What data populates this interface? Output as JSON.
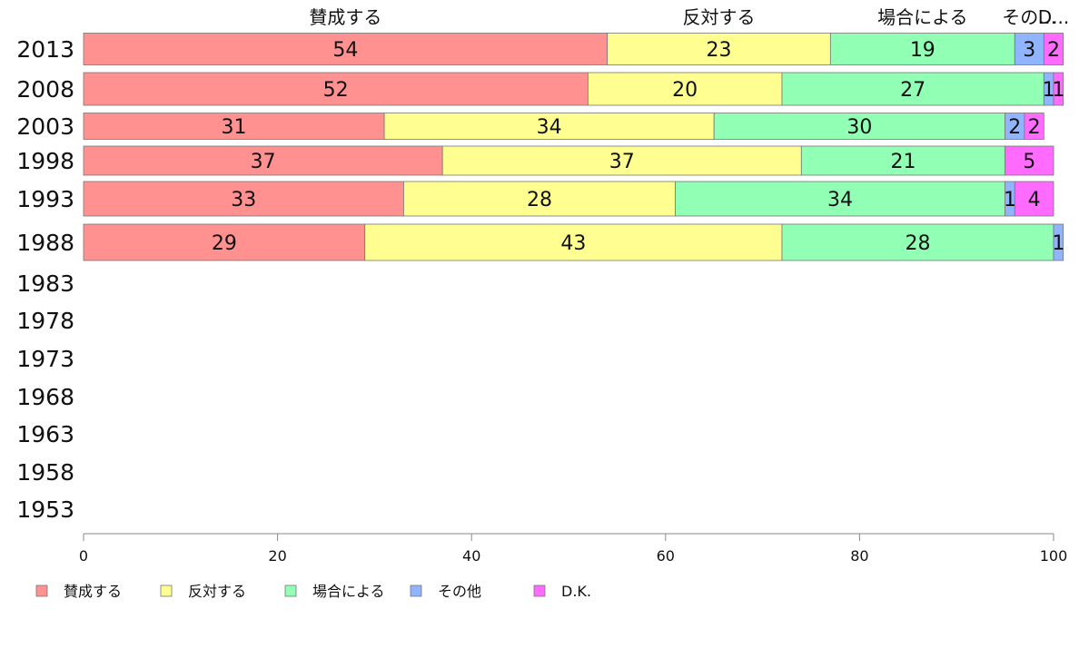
{
  "chart_data": {
    "type": "bar",
    "orientation": "horizontal",
    "stacked": true,
    "title": "",
    "xlabel": "",
    "ylabel": "",
    "xlim": [
      0,
      100
    ],
    "x_ticks": [
      "0",
      "20",
      "40",
      "60",
      "80",
      "100"
    ],
    "categories": [
      "2013",
      "2008",
      "2003",
      "1998",
      "1993",
      "1988",
      "1983",
      "1978",
      "1973",
      "1968",
      "1963",
      "1958",
      "1953"
    ],
    "top_labels": [
      "賛成する",
      "反対する",
      "場合による",
      "その…",
      "D..."
    ],
    "legend_position": "bottom-left",
    "grid": false,
    "series": [
      {
        "name": "賛成する",
        "color": "#ff9191",
        "values": [
          54,
          52,
          31,
          37,
          33,
          29,
          null,
          null,
          null,
          null,
          null,
          null,
          null
        ]
      },
      {
        "name": "反対する",
        "color": "#ffff91",
        "values": [
          23,
          20,
          34,
          37,
          28,
          43,
          null,
          null,
          null,
          null,
          null,
          null,
          null
        ]
      },
      {
        "name": "場合による",
        "color": "#91ffb4",
        "values": [
          19,
          27,
          30,
          21,
          34,
          28,
          null,
          null,
          null,
          null,
          null,
          null,
          null
        ]
      },
      {
        "name": "その他",
        "color": "#91b4ff",
        "values": [
          3,
          1,
          2,
          0,
          1,
          1,
          null,
          null,
          null,
          null,
          null,
          null,
          null
        ]
      },
      {
        "name": "D.K.",
        "color": "#ff6bff",
        "values": [
          2,
          1,
          2,
          5,
          4,
          0,
          null,
          null,
          null,
          null,
          null,
          null,
          null
        ]
      }
    ]
  }
}
